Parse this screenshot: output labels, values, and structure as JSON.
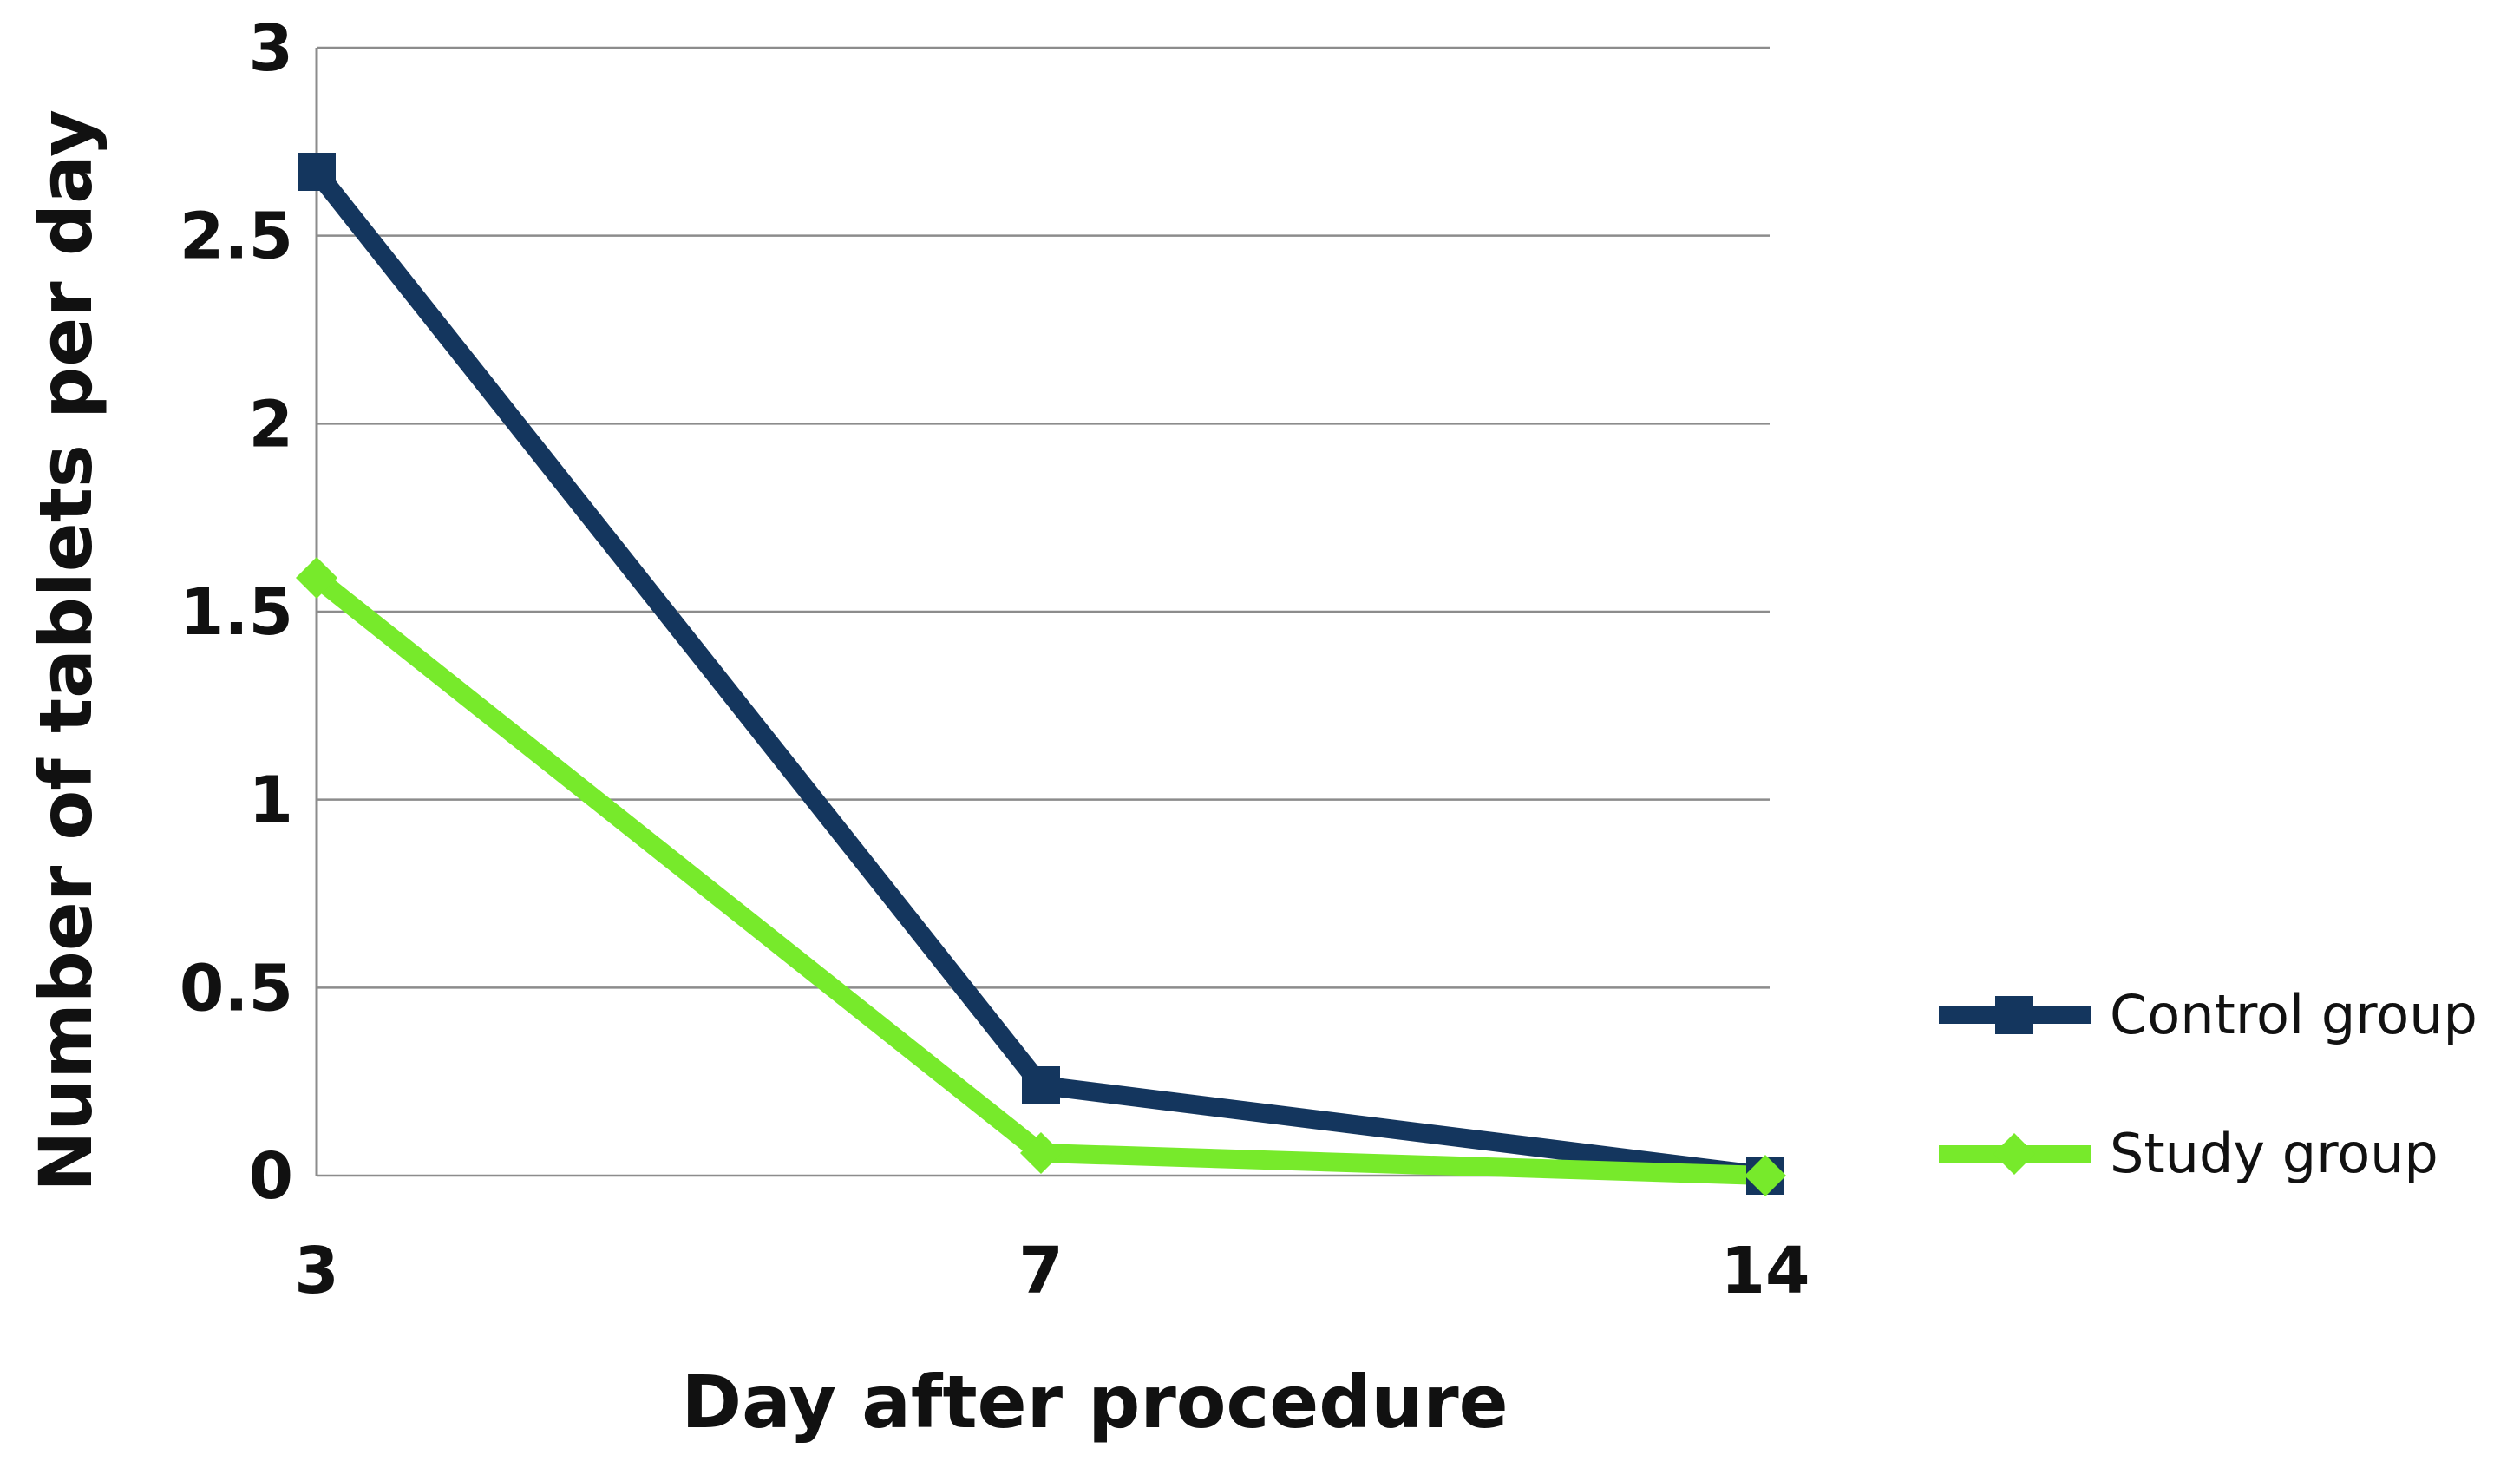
{
  "chart_data": {
    "type": "line",
    "x": [
      3,
      7,
      14
    ],
    "categories": [
      "3",
      "7",
      "14"
    ],
    "series": [
      {
        "name": "Control group",
        "values": [
          2.67,
          0.24,
          0.0
        ],
        "color": "#14365e",
        "marker": "square"
      },
      {
        "name": "Study group",
        "values": [
          1.59,
          0.06,
          0.0
        ],
        "color": "#77ea2b",
        "marker": "diamond"
      }
    ],
    "title": "",
    "xlabel": "Day after procedure",
    "ylabel": "Number of tablets per day",
    "ylim": [
      0,
      3
    ],
    "yticks": [
      "0",
      "0.5",
      "1",
      "1.5",
      "2",
      "2.5",
      "3"
    ],
    "grid": true,
    "legend": "right",
    "grid_color": "#8c8c8c"
  }
}
